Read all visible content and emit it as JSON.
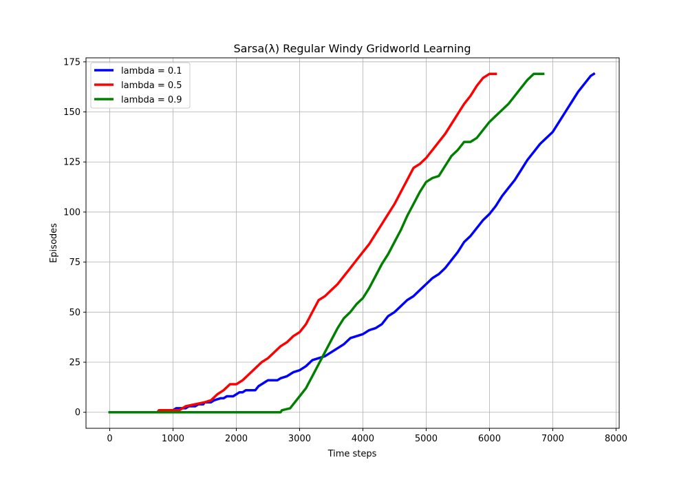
{
  "chart_data": {
    "type": "line",
    "title": "Sarsa(λ) Regular Windy Gridworld Learning",
    "xlabel": "Time steps",
    "ylabel": "Episodes",
    "xlim": [
      -375,
      8050
    ],
    "ylim": [
      -8,
      177
    ],
    "xticks": [
      0,
      1000,
      2000,
      3000,
      4000,
      5000,
      6000,
      7000,
      8000
    ],
    "yticks": [
      0,
      25,
      50,
      75,
      100,
      125,
      150,
      175
    ],
    "grid": true,
    "legend_position": "top-left",
    "series": [
      {
        "name": "lambda = 0.1",
        "color": "#0000ff",
        "points": [
          [
            0,
            0
          ],
          [
            760,
            0
          ],
          [
            780,
            1
          ],
          [
            1000,
            1
          ],
          [
            1050,
            2
          ],
          [
            1200,
            2
          ],
          [
            1250,
            3
          ],
          [
            1350,
            3
          ],
          [
            1400,
            4
          ],
          [
            1480,
            4
          ],
          [
            1500,
            5
          ],
          [
            1600,
            5
          ],
          [
            1650,
            6
          ],
          [
            1750,
            7
          ],
          [
            1800,
            7
          ],
          [
            1850,
            8
          ],
          [
            1950,
            8
          ],
          [
            2000,
            9
          ],
          [
            2050,
            10
          ],
          [
            2100,
            10
          ],
          [
            2150,
            11
          ],
          [
            2300,
            11
          ],
          [
            2350,
            13
          ],
          [
            2400,
            14
          ],
          [
            2450,
            15
          ],
          [
            2500,
            16
          ],
          [
            2650,
            16
          ],
          [
            2700,
            17
          ],
          [
            2800,
            18
          ],
          [
            2900,
            20
          ],
          [
            3000,
            21
          ],
          [
            3100,
            23
          ],
          [
            3200,
            26
          ],
          [
            3300,
            27
          ],
          [
            3400,
            28
          ],
          [
            3500,
            30
          ],
          [
            3600,
            32
          ],
          [
            3700,
            34
          ],
          [
            3800,
            37
          ],
          [
            3900,
            38
          ],
          [
            4000,
            39
          ],
          [
            4100,
            41
          ],
          [
            4200,
            42
          ],
          [
            4300,
            44
          ],
          [
            4400,
            48
          ],
          [
            4500,
            50
          ],
          [
            4600,
            53
          ],
          [
            4700,
            56
          ],
          [
            4800,
            58
          ],
          [
            4900,
            61
          ],
          [
            5000,
            64
          ],
          [
            5100,
            67
          ],
          [
            5200,
            69
          ],
          [
            5300,
            72
          ],
          [
            5400,
            76
          ],
          [
            5500,
            80
          ],
          [
            5600,
            85
          ],
          [
            5700,
            88
          ],
          [
            5800,
            92
          ],
          [
            5900,
            96
          ],
          [
            6000,
            99
          ],
          [
            6100,
            103
          ],
          [
            6200,
            108
          ],
          [
            6300,
            112
          ],
          [
            6400,
            116
          ],
          [
            6500,
            121
          ],
          [
            6600,
            126
          ],
          [
            6700,
            130
          ],
          [
            6800,
            134
          ],
          [
            6900,
            137
          ],
          [
            7000,
            140
          ],
          [
            7100,
            145
          ],
          [
            7200,
            150
          ],
          [
            7300,
            155
          ],
          [
            7400,
            160
          ],
          [
            7500,
            164
          ],
          [
            7600,
            168
          ],
          [
            7650,
            169
          ]
        ]
      },
      {
        "name": "lambda = 0.5",
        "color": "#ff0000",
        "points": [
          [
            0,
            0
          ],
          [
            750,
            0
          ],
          [
            780,
            1
          ],
          [
            1100,
            1
          ],
          [
            1150,
            2
          ],
          [
            1200,
            3
          ],
          [
            1350,
            4
          ],
          [
            1500,
            5
          ],
          [
            1600,
            6
          ],
          [
            1700,
            9
          ],
          [
            1800,
            11
          ],
          [
            1900,
            14
          ],
          [
            2000,
            14
          ],
          [
            2100,
            16
          ],
          [
            2200,
            19
          ],
          [
            2300,
            22
          ],
          [
            2400,
            25
          ],
          [
            2500,
            27
          ],
          [
            2600,
            30
          ],
          [
            2700,
            33
          ],
          [
            2800,
            35
          ],
          [
            2900,
            38
          ],
          [
            3000,
            40
          ],
          [
            3100,
            44
          ],
          [
            3200,
            50
          ],
          [
            3300,
            56
          ],
          [
            3400,
            58
          ],
          [
            3500,
            61
          ],
          [
            3600,
            64
          ],
          [
            3700,
            68
          ],
          [
            3800,
            72
          ],
          [
            3900,
            76
          ],
          [
            4000,
            80
          ],
          [
            4100,
            84
          ],
          [
            4200,
            89
          ],
          [
            4300,
            94
          ],
          [
            4400,
            99
          ],
          [
            4500,
            104
          ],
          [
            4600,
            110
          ],
          [
            4700,
            116
          ],
          [
            4800,
            122
          ],
          [
            4900,
            124
          ],
          [
            5000,
            127
          ],
          [
            5100,
            131
          ],
          [
            5200,
            135
          ],
          [
            5300,
            139
          ],
          [
            5400,
            144
          ],
          [
            5500,
            149
          ],
          [
            5600,
            154
          ],
          [
            5700,
            158
          ],
          [
            5800,
            163
          ],
          [
            5900,
            167
          ],
          [
            6000,
            169
          ],
          [
            6100,
            169
          ]
        ]
      },
      {
        "name": "lambda = 0.9",
        "color": "#008000",
        "points": [
          [
            0,
            0
          ],
          [
            2700,
            0
          ],
          [
            2720,
            1
          ],
          [
            2850,
            2
          ],
          [
            2900,
            4
          ],
          [
            3000,
            8
          ],
          [
            3100,
            12
          ],
          [
            3200,
            18
          ],
          [
            3300,
            24
          ],
          [
            3400,
            30
          ],
          [
            3500,
            36
          ],
          [
            3600,
            42
          ],
          [
            3700,
            47
          ],
          [
            3800,
            50
          ],
          [
            3900,
            54
          ],
          [
            4000,
            57
          ],
          [
            4100,
            62
          ],
          [
            4200,
            68
          ],
          [
            4300,
            74
          ],
          [
            4400,
            79
          ],
          [
            4500,
            85
          ],
          [
            4600,
            91
          ],
          [
            4700,
            98
          ],
          [
            4800,
            104
          ],
          [
            4900,
            110
          ],
          [
            5000,
            115
          ],
          [
            5100,
            117
          ],
          [
            5200,
            118
          ],
          [
            5300,
            123
          ],
          [
            5400,
            128
          ],
          [
            5500,
            131
          ],
          [
            5600,
            135
          ],
          [
            5700,
            135
          ],
          [
            5800,
            137
          ],
          [
            5900,
            141
          ],
          [
            6000,
            145
          ],
          [
            6100,
            148
          ],
          [
            6200,
            151
          ],
          [
            6300,
            154
          ],
          [
            6400,
            158
          ],
          [
            6500,
            162
          ],
          [
            6600,
            166
          ],
          [
            6700,
            169
          ],
          [
            6850,
            169
          ]
        ]
      }
    ]
  }
}
